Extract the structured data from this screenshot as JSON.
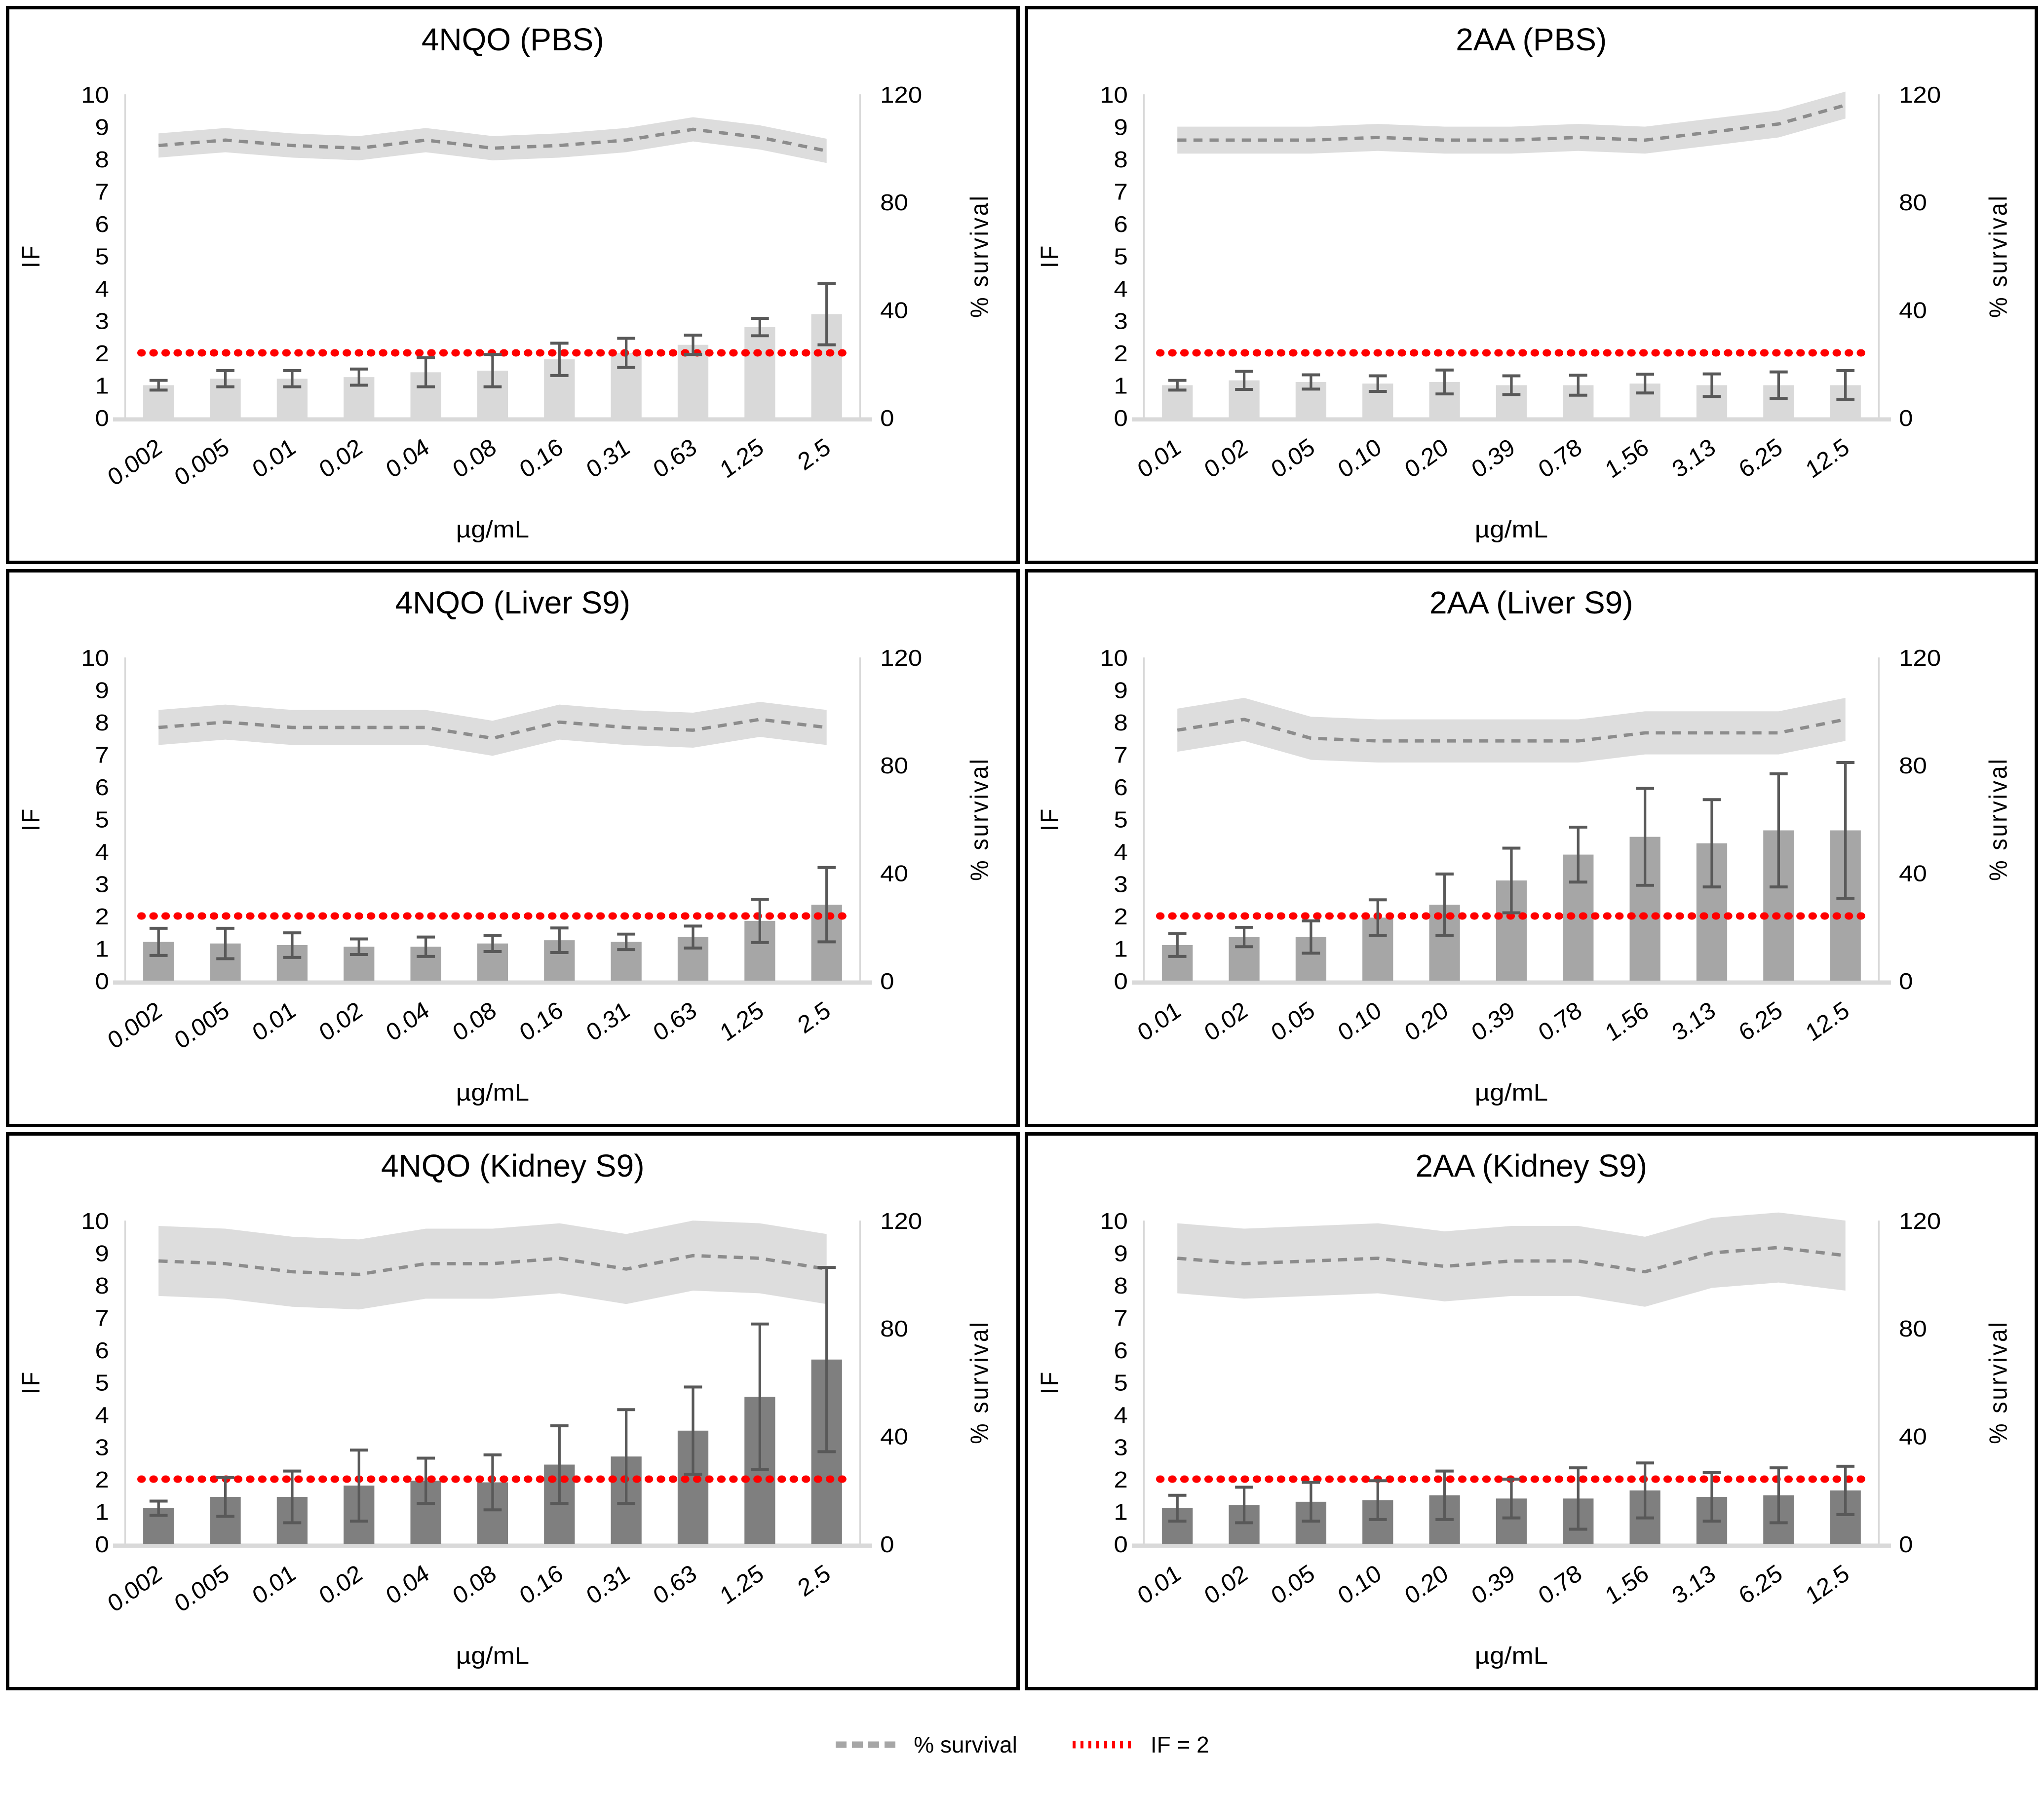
{
  "figure": {
    "legend": [
      {
        "label": "% survival",
        "swatch": "gray-dashed-line",
        "color": "#a6a6a6"
      },
      {
        "label": "IF = 2",
        "swatch": "red-dotted-line",
        "color": "#ff0000"
      }
    ],
    "colors": {
      "error_bar": "#595959",
      "survival_line": "#8c8c8c",
      "survival_band": "#d9d9d9",
      "reference_line": "#ff0000",
      "axis_line": "#d9d9d9",
      "panel_border": "#000000"
    }
  },
  "chart_data": [
    {
      "type": "bar+line",
      "title": "4NQO (PBS)",
      "xlabel": "µg/mL",
      "y_left": {
        "label": "IF",
        "range": [
          0,
          10
        ],
        "ticks": [
          0,
          1,
          2,
          3,
          4,
          5,
          6,
          7,
          8,
          9,
          10
        ]
      },
      "y_right": {
        "label": "% survival",
        "range": [
          0,
          120
        ],
        "ticks": [
          0,
          40,
          80,
          120
        ]
      },
      "categories": [
        "0.002",
        "0.005",
        "0.01",
        "0.02",
        "0.04",
        "0.08",
        "0.16",
        "0.31",
        "0.63",
        "1.25",
        "2.5"
      ],
      "bars": {
        "name": "IF",
        "color": "#d9d9d9",
        "values": [
          1.0,
          1.2,
          1.2,
          1.25,
          1.4,
          1.45,
          1.8,
          2.0,
          2.25,
          2.8,
          3.2
        ],
        "error": [
          0.15,
          0.25,
          0.25,
          0.25,
          0.45,
          0.5,
          0.5,
          0.45,
          0.3,
          0.27,
          0.95
        ]
      },
      "line": {
        "name": "% survival",
        "color": "#8c8c8c",
        "band_color": "#d9d9d9",
        "band_halfwidth": 4.5,
        "values": [
          101,
          103,
          101,
          100,
          103,
          100,
          101,
          103,
          107,
          104,
          99
        ]
      },
      "reference": {
        "name": "IF = 2",
        "value": 2,
        "color": "#ff0000"
      }
    },
    {
      "type": "bar+line",
      "title": "2AA (PBS)",
      "xlabel": "µg/mL",
      "y_left": {
        "label": "IF",
        "range": [
          0,
          10
        ],
        "ticks": [
          0,
          1,
          2,
          3,
          4,
          5,
          6,
          7,
          8,
          9,
          10
        ]
      },
      "y_right": {
        "label": "% survival",
        "range": [
          0,
          120
        ],
        "ticks": [
          0,
          40,
          80,
          120
        ]
      },
      "categories": [
        "0.01",
        "0.02",
        "0.05",
        "0.10",
        "0.20",
        "0.39",
        "0.78",
        "1.56",
        "3.13",
        "6.25",
        "12.5"
      ],
      "bars": {
        "name": "IF",
        "color": "#d9d9d9",
        "values": [
          1.0,
          1.15,
          1.1,
          1.05,
          1.1,
          1.0,
          1.0,
          1.05,
          1.0,
          1.0,
          1.0
        ],
        "error": [
          0.15,
          0.28,
          0.22,
          0.24,
          0.37,
          0.29,
          0.31,
          0.29,
          0.35,
          0.41,
          0.45
        ]
      },
      "line": {
        "name": "% survival",
        "color": "#8c8c8c",
        "band_color": "#d9d9d9",
        "band_halfwidth": 5,
        "values": [
          103,
          103,
          103,
          104,
          103,
          103,
          104,
          103,
          106,
          109,
          116
        ]
      },
      "reference": {
        "name": "IF = 2",
        "value": 2,
        "color": "#ff0000"
      }
    },
    {
      "type": "bar+line",
      "title": "4NQO (Liver S9)",
      "xlabel": "µg/mL",
      "y_left": {
        "label": "IF",
        "range": [
          0,
          10
        ],
        "ticks": [
          0,
          1,
          2,
          3,
          4,
          5,
          6,
          7,
          8,
          9,
          10
        ]
      },
      "y_right": {
        "label": "% survival",
        "range": [
          0,
          120
        ],
        "ticks": [
          0,
          40,
          80,
          120
        ]
      },
      "categories": [
        "0.002",
        "0.005",
        "0.01",
        "0.02",
        "0.04",
        "0.08",
        "0.16",
        "0.31",
        "0.63",
        "1.25",
        "2.5"
      ],
      "bars": {
        "name": "IF",
        "color": "#a6a6a6",
        "values": [
          1.2,
          1.15,
          1.1,
          1.05,
          1.05,
          1.15,
          1.25,
          1.2,
          1.35,
          1.85,
          2.35
        ],
        "error": [
          0.42,
          0.47,
          0.38,
          0.24,
          0.3,
          0.25,
          0.38,
          0.24,
          0.34,
          0.67,
          1.15
        ]
      },
      "line": {
        "name": "% survival",
        "color": "#8c8c8c",
        "band_color": "#d9d9d9",
        "band_halfwidth": 6.5,
        "values": [
          94,
          96,
          94,
          94,
          94,
          90,
          96,
          94,
          93,
          97,
          94
        ]
      },
      "reference": {
        "name": "IF = 2",
        "value": 2,
        "color": "#ff0000"
      }
    },
    {
      "type": "bar+line",
      "title": "2AA (Liver S9)",
      "xlabel": "µg/mL",
      "y_left": {
        "label": "IF",
        "range": [
          0,
          10
        ],
        "ticks": [
          0,
          1,
          2,
          3,
          4,
          5,
          6,
          7,
          8,
          9,
          10
        ]
      },
      "y_right": {
        "label": "% survival",
        "range": [
          0,
          120
        ],
        "ticks": [
          0,
          40,
          80,
          120
        ]
      },
      "categories": [
        "0.01",
        "0.02",
        "0.05",
        "0.10",
        "0.20",
        "0.39",
        "0.78",
        "1.56",
        "3.13",
        "6.25",
        "12.5"
      ],
      "bars": {
        "name": "IF",
        "color": "#a6a6a6",
        "values": [
          1.1,
          1.35,
          1.35,
          1.95,
          2.35,
          3.1,
          3.9,
          4.45,
          4.25,
          4.65,
          4.65
        ],
        "error": [
          0.35,
          0.3,
          0.5,
          0.55,
          0.95,
          1.0,
          0.85,
          1.5,
          1.35,
          1.75,
          2.1
        ]
      },
      "line": {
        "name": "% survival",
        "color": "#8c8c8c",
        "band_color": "#d9d9d9",
        "band_halfwidth": 8,
        "values": [
          93,
          97,
          90,
          89,
          89,
          89,
          89,
          92,
          92,
          92,
          97
        ]
      },
      "reference": {
        "name": "IF = 2",
        "value": 2,
        "color": "#ff0000"
      }
    },
    {
      "type": "bar+line",
      "title": "4NQO (Kidney S9)",
      "xlabel": "µg/mL",
      "y_left": {
        "label": "IF",
        "range": [
          0,
          10
        ],
        "ticks": [
          0,
          1,
          2,
          3,
          4,
          5,
          6,
          7,
          8,
          9,
          10
        ]
      },
      "y_right": {
        "label": "% survival",
        "range": [
          0,
          120
        ],
        "ticks": [
          0,
          40,
          80,
          120
        ]
      },
      "categories": [
        "0.002",
        "0.005",
        "0.01",
        "0.02",
        "0.04",
        "0.08",
        "0.16",
        "0.31",
        "0.63",
        "1.25",
        "2.5"
      ],
      "bars": {
        "name": "IF",
        "color": "#7f7f7f",
        "values": [
          1.1,
          1.45,
          1.45,
          1.8,
          1.95,
          1.9,
          2.45,
          2.7,
          3.5,
          4.55,
          5.7
        ],
        "error": [
          0.22,
          0.6,
          0.8,
          1.1,
          0.7,
          0.85,
          1.2,
          1.45,
          1.35,
          2.25,
          2.85
        ]
      },
      "line": {
        "name": "% survival",
        "color": "#8c8c8c",
        "band_color": "#d9d9d9",
        "band_halfwidth": 13,
        "values": [
          105,
          104,
          101,
          100,
          104,
          104,
          106,
          102,
          107,
          106,
          102
        ]
      },
      "reference": {
        "name": "IF = 2",
        "value": 2,
        "color": "#ff0000"
      }
    },
    {
      "type": "bar+line",
      "title": "2AA (Kidney S9)",
      "xlabel": "µg/mL",
      "y_left": {
        "label": "IF",
        "range": [
          0,
          10
        ],
        "ticks": [
          0,
          1,
          2,
          3,
          4,
          5,
          6,
          7,
          8,
          9,
          10
        ]
      },
      "y_right": {
        "label": "% survival",
        "range": [
          0,
          120
        ],
        "ticks": [
          0,
          40,
          80,
          120
        ]
      },
      "categories": [
        "0.01",
        "0.02",
        "0.05",
        "0.10",
        "0.20",
        "0.39",
        "0.78",
        "1.56",
        "3.13",
        "6.25",
        "12.5"
      ],
      "bars": {
        "name": "IF",
        "color": "#7f7f7f",
        "values": [
          1.1,
          1.2,
          1.3,
          1.35,
          1.5,
          1.4,
          1.4,
          1.65,
          1.45,
          1.5,
          1.65
        ],
        "error": [
          0.4,
          0.55,
          0.6,
          0.6,
          0.75,
          0.6,
          0.95,
          0.85,
          0.75,
          0.85,
          0.75
        ]
      },
      "line": {
        "name": "% survival",
        "color": "#8c8c8c",
        "band_color": "#d9d9d9",
        "band_halfwidth": 13,
        "values": [
          106,
          104,
          105,
          106,
          103,
          105,
          105,
          101,
          108,
          110,
          107
        ]
      },
      "reference": {
        "name": "IF = 2",
        "value": 2,
        "color": "#ff0000"
      }
    }
  ]
}
